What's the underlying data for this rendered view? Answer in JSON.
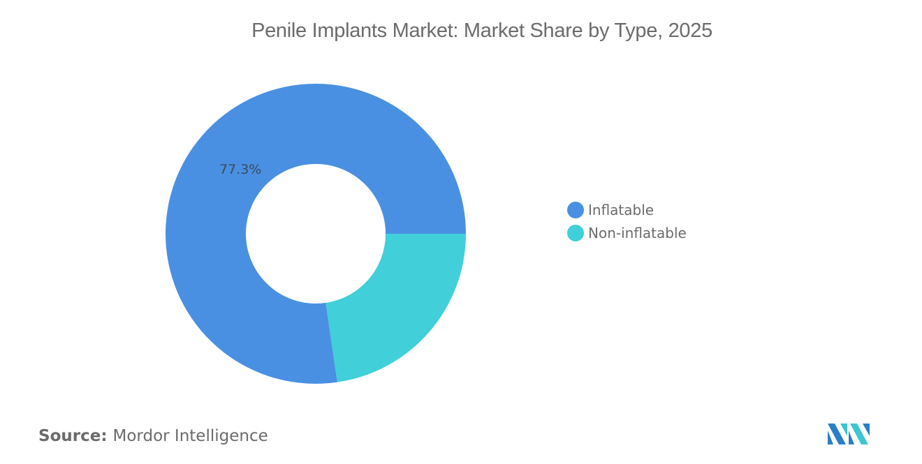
{
  "title": "Penile Implants Market: Market Share by Type, 2025",
  "chart_data": {
    "type": "pie",
    "variant": "donut",
    "title": "Penile Implants Market: Market Share by Type, 2025",
    "categories": [
      "Inflatable",
      "Non-inflatable"
    ],
    "values": [
      77.3,
      22.7
    ],
    "unit": "%",
    "data_labels": [
      "77.3%",
      ""
    ],
    "colors": [
      "#4a90e2",
      "#41cfd9"
    ],
    "legend_position": "right",
    "start_angle_deg": 90,
    "direction": "clockwise-from-3-oclock-for-second-slice"
  },
  "slices": [
    {
      "label": "Inflatable",
      "value": 77.3,
      "display": "77.3%",
      "color": "#4a90e2"
    },
    {
      "label": "Non-inflatable",
      "value": 22.7,
      "display": "",
      "color": "#41cfd9"
    }
  ],
  "legend": {
    "items": [
      {
        "label": "Inflatable",
        "color": "#4a90e2"
      },
      {
        "label": "Non-inflatable",
        "color": "#41cfd9"
      }
    ]
  },
  "source": {
    "key": "Source:",
    "value": "Mordor Intelligence"
  }
}
